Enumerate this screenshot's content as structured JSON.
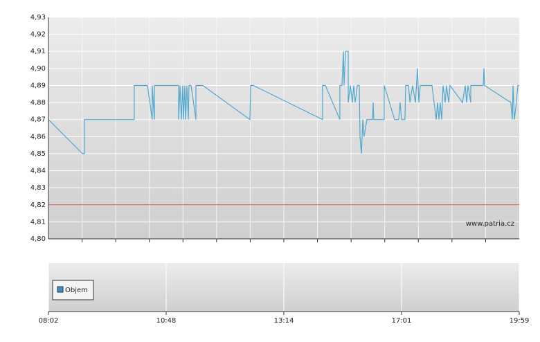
{
  "chart_data": {
    "type": "line",
    "x": [
      0,
      0.288,
      0.306,
      0.306,
      0.729,
      0.729,
      0.841,
      0.882,
      0.882,
      0.9,
      0.9,
      1.106,
      1.106,
      1.118,
      1.129,
      1.141,
      1.147,
      1.159,
      1.165,
      1.176,
      1.188,
      1.194,
      1.212,
      1.253,
      1.253,
      1.312,
      1.712,
      1.718,
      1.741,
      2.329,
      2.329,
      2.353,
      2.476,
      2.476,
      2.494,
      2.506,
      2.512,
      2.524,
      2.547,
      2.547,
      2.565,
      2.582,
      2.594,
      2.606,
      2.624,
      2.641,
      2.647,
      2.659,
      2.671,
      2.682,
      2.706,
      2.753,
      2.759,
      2.765,
      2.853,
      2.853,
      2.941,
      2.976,
      2.988,
      3.0,
      3.029,
      3.035,
      3.059,
      3.071,
      3.094,
      3.118,
      3.135,
      3.147,
      3.159,
      3.259,
      3.294,
      3.306,
      3.318,
      3.329,
      3.341,
      3.353,
      3.371,
      3.382,
      3.4,
      3.412,
      3.518,
      3.541,
      3.553,
      3.565,
      3.588,
      3.588,
      3.694,
      3.7,
      3.706,
      3.929,
      3.941,
      3.947,
      3.959,
      3.976,
      3.988,
      4
    ],
    "series": [
      {
        "color": "#4fa8cf",
        "values": [
          4.87,
          4.85,
          4.85,
          4.87,
          4.87,
          4.89,
          4.89,
          4.87,
          4.89,
          4.87,
          4.89,
          4.89,
          4.87,
          4.89,
          4.87,
          4.89,
          4.87,
          4.89,
          4.87,
          4.89,
          4.87,
          4.89,
          4.89,
          4.87,
          4.89,
          4.89,
          4.87,
          4.89,
          4.89,
          4.87,
          4.89,
          4.89,
          4.87,
          4.89,
          4.89,
          4.91,
          4.89,
          4.91,
          4.91,
          4.88,
          4.89,
          4.88,
          4.89,
          4.88,
          4.89,
          4.89,
          4.86,
          4.85,
          4.87,
          4.86,
          4.87,
          4.87,
          4.88,
          4.87,
          4.87,
          4.89,
          4.87,
          4.87,
          4.88,
          4.87,
          4.87,
          4.89,
          4.89,
          4.88,
          4.89,
          4.88,
          4.9,
          4.88,
          4.89,
          4.89,
          4.87,
          4.88,
          4.87,
          4.88,
          4.87,
          4.89,
          4.88,
          4.89,
          4.88,
          4.89,
          4.88,
          4.89,
          4.88,
          4.89,
          4.88,
          4.89,
          4.89,
          4.9,
          4.89,
          4.88,
          4.87,
          4.89,
          4.87,
          4.88,
          4.89,
          4.89
        ]
      }
    ],
    "xlim": [
      0,
      4
    ],
    "xticks": [
      {
        "value": 0,
        "label": "08:02"
      },
      {
        "value": 1,
        "label": "10:48"
      },
      {
        "value": 2,
        "label": "13:14"
      },
      {
        "value": 3,
        "label": "17:01"
      },
      {
        "value": 4,
        "label": "19:59"
      }
    ],
    "ylim": [
      4.8,
      4.93
    ],
    "yticks": [
      {
        "value": 4.8,
        "label": "4,80"
      },
      {
        "value": 4.81,
        "label": "4,81"
      },
      {
        "value": 4.82,
        "label": "4,82"
      },
      {
        "value": 4.83,
        "label": "4,83"
      },
      {
        "value": 4.84,
        "label": "4,84"
      },
      {
        "value": 4.85,
        "label": "4,85"
      },
      {
        "value": 4.86,
        "label": "4,86"
      },
      {
        "value": 4.87,
        "label": "4,87"
      },
      {
        "value": 4.88,
        "label": "4,88"
      },
      {
        "value": 4.89,
        "label": "4,89"
      },
      {
        "value": 4.9,
        "label": "4,90"
      },
      {
        "value": 4.91,
        "label": "4,91"
      },
      {
        "value": 4.92,
        "label": "4,92"
      },
      {
        "value": 4.93,
        "label": "4,93"
      }
    ],
    "reference_line": {
      "value": 4.82,
      "color": "#d9534f"
    },
    "watermark": "www.patria.cz",
    "volume_legend": {
      "label": "Objem",
      "color": "#3a8fc8"
    },
    "grid": true
  }
}
